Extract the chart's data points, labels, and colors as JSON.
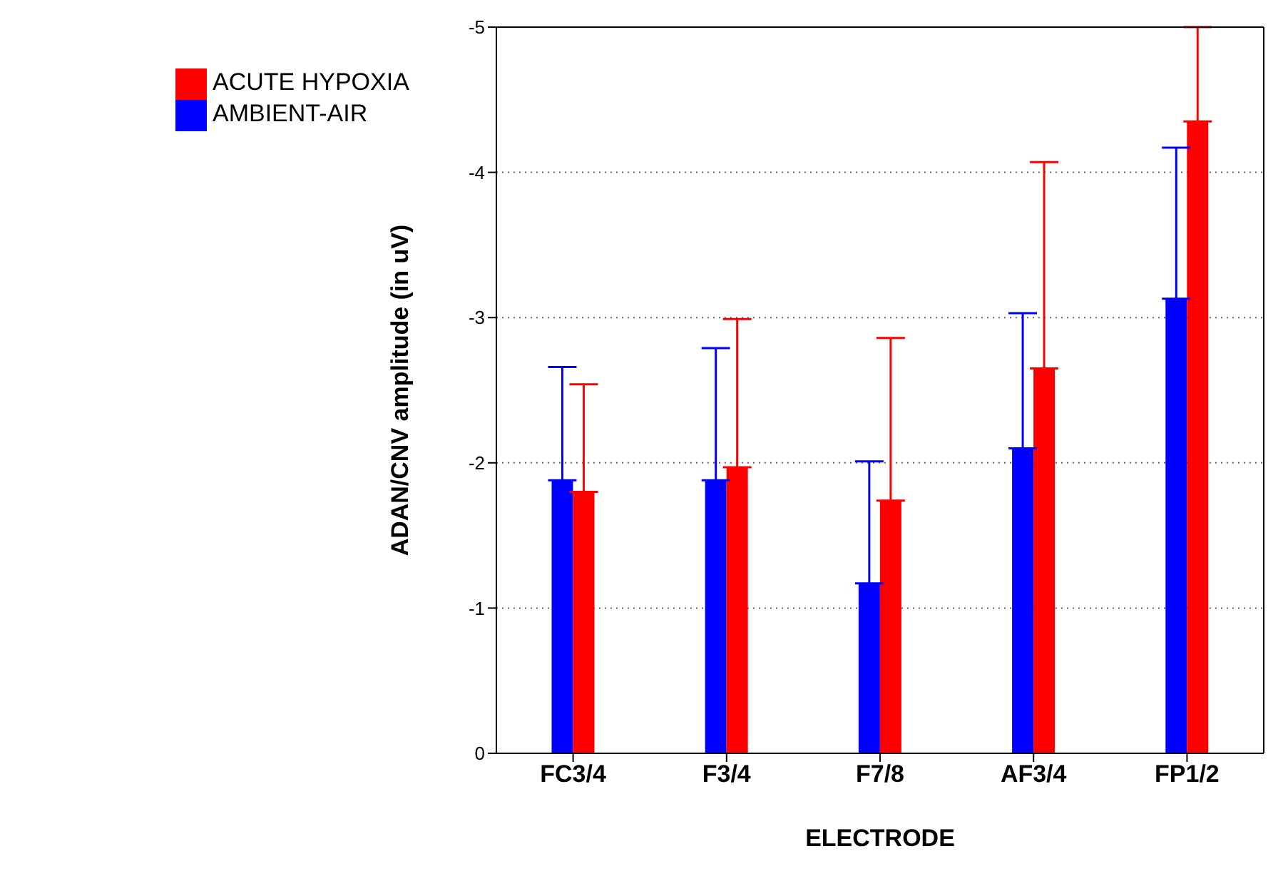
{
  "chart_data": {
    "type": "bar",
    "xlabel": "ELECTRODE",
    "ylabel": "ADAN/CNV amplitude (in uV)",
    "categories": [
      "FC3/4",
      "F3/4",
      "F7/8",
      "AF3/4",
      "FP1/2"
    ],
    "series": [
      {
        "name": "AMBIENT-AIR",
        "color": "#0000ff",
        "values": [
          -1.88,
          -1.88,
          -1.17,
          -2.1,
          -3.13
        ],
        "errors": [
          [
            -2.66,
            -1.88
          ],
          [
            -2.79,
            -1.88
          ],
          [
            -2.01,
            -1.17
          ],
          [
            -3.03,
            -2.1
          ],
          [
            -4.17,
            -3.13
          ]
        ]
      },
      {
        "name": "ACUTE HYPOXIA",
        "color": "#ff0000",
        "values": [
          -1.8,
          -1.97,
          -1.74,
          -2.65,
          -4.35
        ],
        "errors": [
          [
            -2.54,
            -1.8
          ],
          [
            -2.99,
            -1.97
          ],
          [
            -2.86,
            -1.74
          ],
          [
            -4.07,
            -2.65
          ],
          [
            -5.0,
            -4.35
          ]
        ]
      }
    ],
    "ylim": [
      0,
      -5
    ],
    "yticks": [
      0,
      -1,
      -2,
      -3,
      -4,
      -5
    ],
    "grid": "y",
    "legend": "top left"
  }
}
